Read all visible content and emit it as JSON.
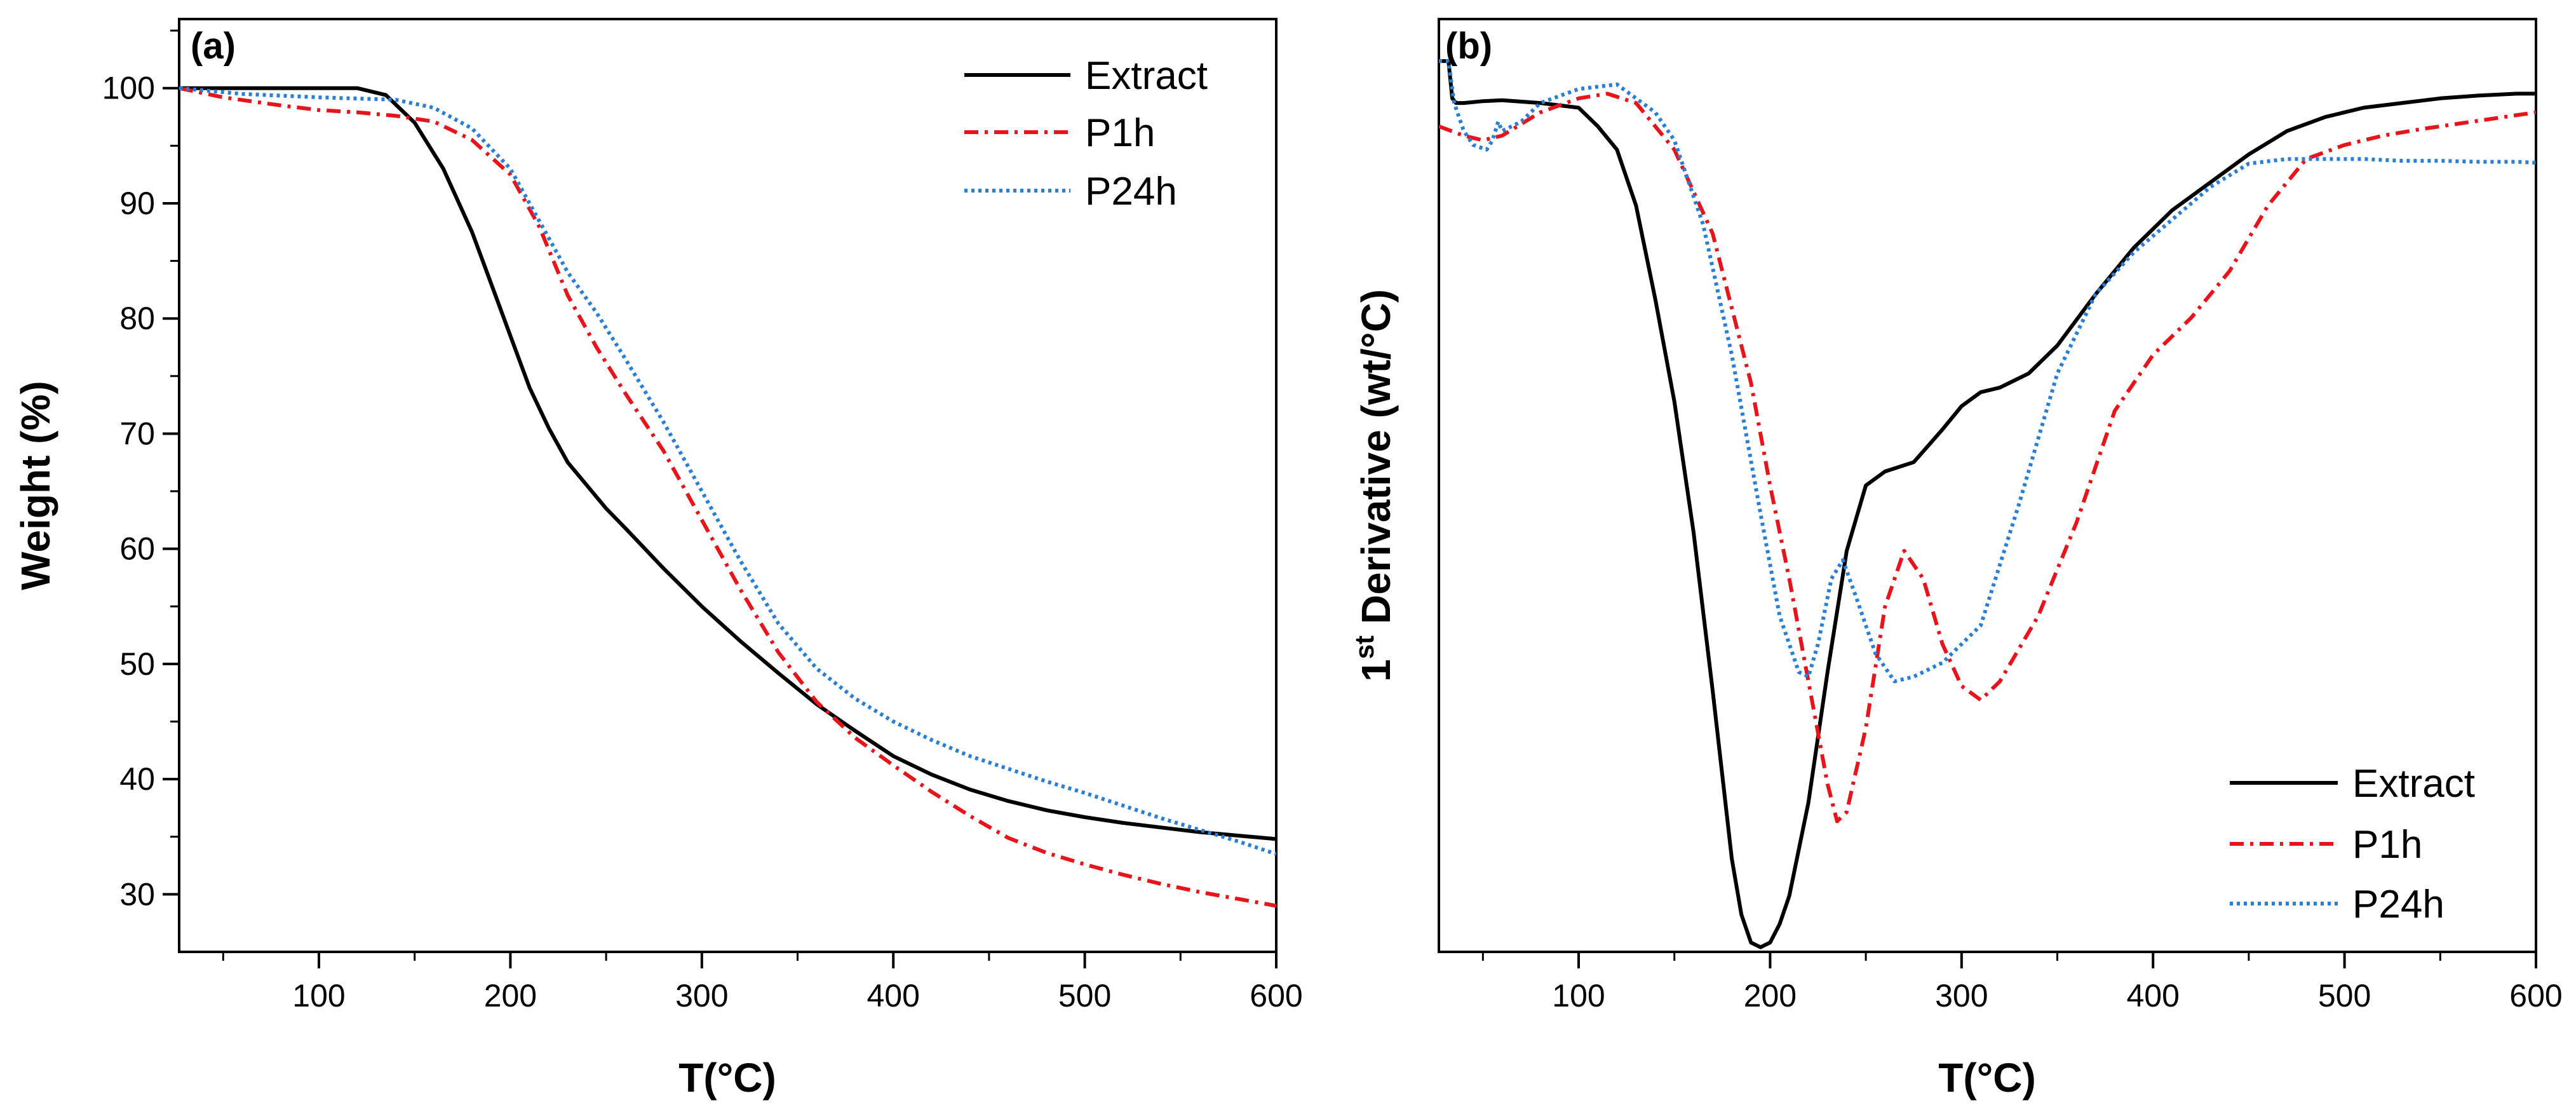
{
  "chart_data": [
    {
      "type": "line",
      "panel_label": "(a)",
      "title": "",
      "xlabel": "T(°C)",
      "ylabel": "Weight (%)",
      "xlim": [
        27,
        600
      ],
      "ylim": [
        25,
        106
      ],
      "xticks": [
        100,
        200,
        300,
        400,
        500,
        600
      ],
      "yticks": [
        30,
        40,
        50,
        60,
        70,
        80,
        90,
        100
      ],
      "x_tick_labels": [
        "100",
        "200",
        "300",
        "400",
        "500",
        "600"
      ],
      "y_tick_labels": [
        "30",
        "40",
        "50",
        "60",
        "70",
        "80",
        "90",
        "100"
      ],
      "legend_position": "top-right",
      "series": [
        {
          "name": "Extract",
          "color": "#000000",
          "style": "solid",
          "x": [
            27,
            60,
            100,
            120,
            135,
            150,
            165,
            180,
            190,
            200,
            210,
            220,
            230,
            240,
            250,
            260,
            280,
            300,
            320,
            340,
            360,
            380,
            400,
            420,
            440,
            460,
            480,
            500,
            520,
            540,
            560,
            580,
            600
          ],
          "y": [
            100,
            100,
            100,
            100,
            99.4,
            97,
            93,
            87.5,
            83,
            78.5,
            74,
            70.5,
            67.5,
            65.5,
            63.5,
            61.8,
            58.3,
            55,
            52,
            49.2,
            46.5,
            44.2,
            42,
            40.4,
            39.1,
            38.1,
            37.3,
            36.7,
            36.2,
            35.8,
            35.4,
            35.1,
            34.8
          ]
        },
        {
          "name": "P1h",
          "color": "#e8141b",
          "style": "dashdot",
          "x": [
            27,
            50,
            80,
            100,
            120,
            140,
            160,
            180,
            200,
            215,
            230,
            245,
            260,
            280,
            300,
            320,
            340,
            360,
            380,
            400,
            420,
            440,
            460,
            480,
            500,
            520,
            540,
            560,
            580,
            600
          ],
          "y": [
            100,
            99.2,
            98.5,
            98.1,
            97.9,
            97.6,
            97.1,
            95.5,
            92.5,
            88,
            82,
            77.5,
            73.5,
            68.5,
            62.5,
            56.5,
            51,
            46.7,
            43.6,
            41.2,
            38.9,
            36.8,
            34.9,
            33.6,
            32.6,
            31.7,
            30.9,
            30.2,
            29.6,
            29
          ]
        },
        {
          "name": "P24h",
          "color": "#2a7fd5",
          "style": "dotted",
          "x": [
            27,
            60,
            100,
            140,
            160,
            180,
            200,
            215,
            230,
            245,
            260,
            280,
            300,
            320,
            340,
            360,
            380,
            400,
            420,
            440,
            460,
            480,
            500,
            520,
            540,
            560,
            580,
            600
          ],
          "y": [
            100,
            99.5,
            99.2,
            99,
            98.3,
            96.5,
            93,
            88.5,
            84,
            80.5,
            76.5,
            71,
            65,
            59,
            53.5,
            49.6,
            47,
            45,
            43.4,
            42,
            40.9,
            39.8,
            38.8,
            37.7,
            36.6,
            35.6,
            34.6,
            33.5
          ]
        }
      ]
    },
    {
      "type": "line",
      "panel_label": "(b)",
      "title": "",
      "xlabel": "T(°C)",
      "ylabel_prefix": "1",
      "ylabel_superscript": "st",
      "ylabel_rest": " Derivative (wt/°C)",
      "xlim": [
        27,
        600
      ],
      "ylim": [
        0,
        100
      ],
      "y_units": "relative (no y tick labels shown)",
      "xticks": [
        100,
        200,
        300,
        400,
        500,
        600
      ],
      "x_tick_labels": [
        "100",
        "200",
        "300",
        "400",
        "500",
        "600"
      ],
      "legend_position": "bottom-right",
      "series": [
        {
          "name": "Extract",
          "color": "#000000",
          "style": "solid",
          "x": [
            27,
            32,
            34,
            36,
            40,
            50,
            60,
            80,
            100,
            110,
            120,
            130,
            140,
            150,
            160,
            170,
            180,
            185,
            190,
            195,
            200,
            205,
            210,
            220,
            230,
            240,
            250,
            260,
            275,
            290,
            300,
            310,
            320,
            335,
            350,
            370,
            390,
            410,
            430,
            450,
            470,
            490,
            510,
            530,
            550,
            570,
            590,
            600
          ],
          "y": [
            95.5,
            95.5,
            91.5,
            91,
            91,
            91.2,
            91.3,
            91,
            90.5,
            88.5,
            86,
            80,
            70,
            59,
            45,
            28,
            10,
            4,
            1,
            0.5,
            1,
            3,
            6,
            16,
            30,
            43,
            50,
            51.5,
            52.5,
            56,
            58.5,
            60,
            60.5,
            62,
            65,
            70.5,
            75.5,
            79.5,
            82.5,
            85.5,
            88,
            89.5,
            90.5,
            91,
            91.5,
            91.8,
            92,
            92
          ]
        },
        {
          "name": "P1h",
          "color": "#e8141b",
          "style": "dashdot",
          "x": [
            27,
            40,
            50,
            60,
            80,
            100,
            115,
            130,
            150,
            170,
            190,
            200,
            210,
            220,
            230,
            235,
            240,
            250,
            260,
            270,
            280,
            290,
            300,
            310,
            320,
            340,
            360,
            380,
            400,
            420,
            440,
            460,
            480,
            500,
            520,
            540,
            560,
            580,
            600
          ],
          "y": [
            88.5,
            87.5,
            87,
            87.5,
            90,
            91.5,
            92,
            91,
            86,
            77,
            61,
            50,
            40,
            29,
            18,
            14,
            15,
            24,
            37,
            43,
            40,
            33,
            28.5,
            27,
            29,
            36,
            46,
            58,
            64,
            68,
            73,
            80,
            85,
            86.5,
            87.5,
            88.2,
            88.8,
            89.4,
            90
          ]
        },
        {
          "name": "P24h",
          "color": "#2a7fd5",
          "style": "dotted",
          "x": [
            27,
            32,
            35,
            40,
            45,
            52,
            55,
            58,
            60,
            65,
            70,
            80,
            100,
            120,
            140,
            150,
            165,
            180,
            195,
            205,
            215,
            220,
            225,
            232,
            238,
            245,
            255,
            265,
            275,
            290,
            310,
            330,
            350,
            370,
            390,
            410,
            430,
            450,
            470,
            490,
            510,
            530,
            550,
            570,
            590,
            600
          ],
          "y": [
            95.5,
            95.5,
            91,
            88,
            86.5,
            86,
            87,
            89,
            88,
            88.5,
            89,
            91,
            92.5,
            93,
            90,
            87,
            78,
            64,
            47,
            36,
            30,
            29.5,
            33,
            40,
            42,
            38,
            32,
            29,
            29.5,
            31,
            35,
            48,
            62,
            70.5,
            75,
            78.5,
            82,
            84.5,
            85,
            85,
            85,
            84.8,
            84.8,
            84.7,
            84.7,
            84.6
          ]
        }
      ]
    }
  ]
}
